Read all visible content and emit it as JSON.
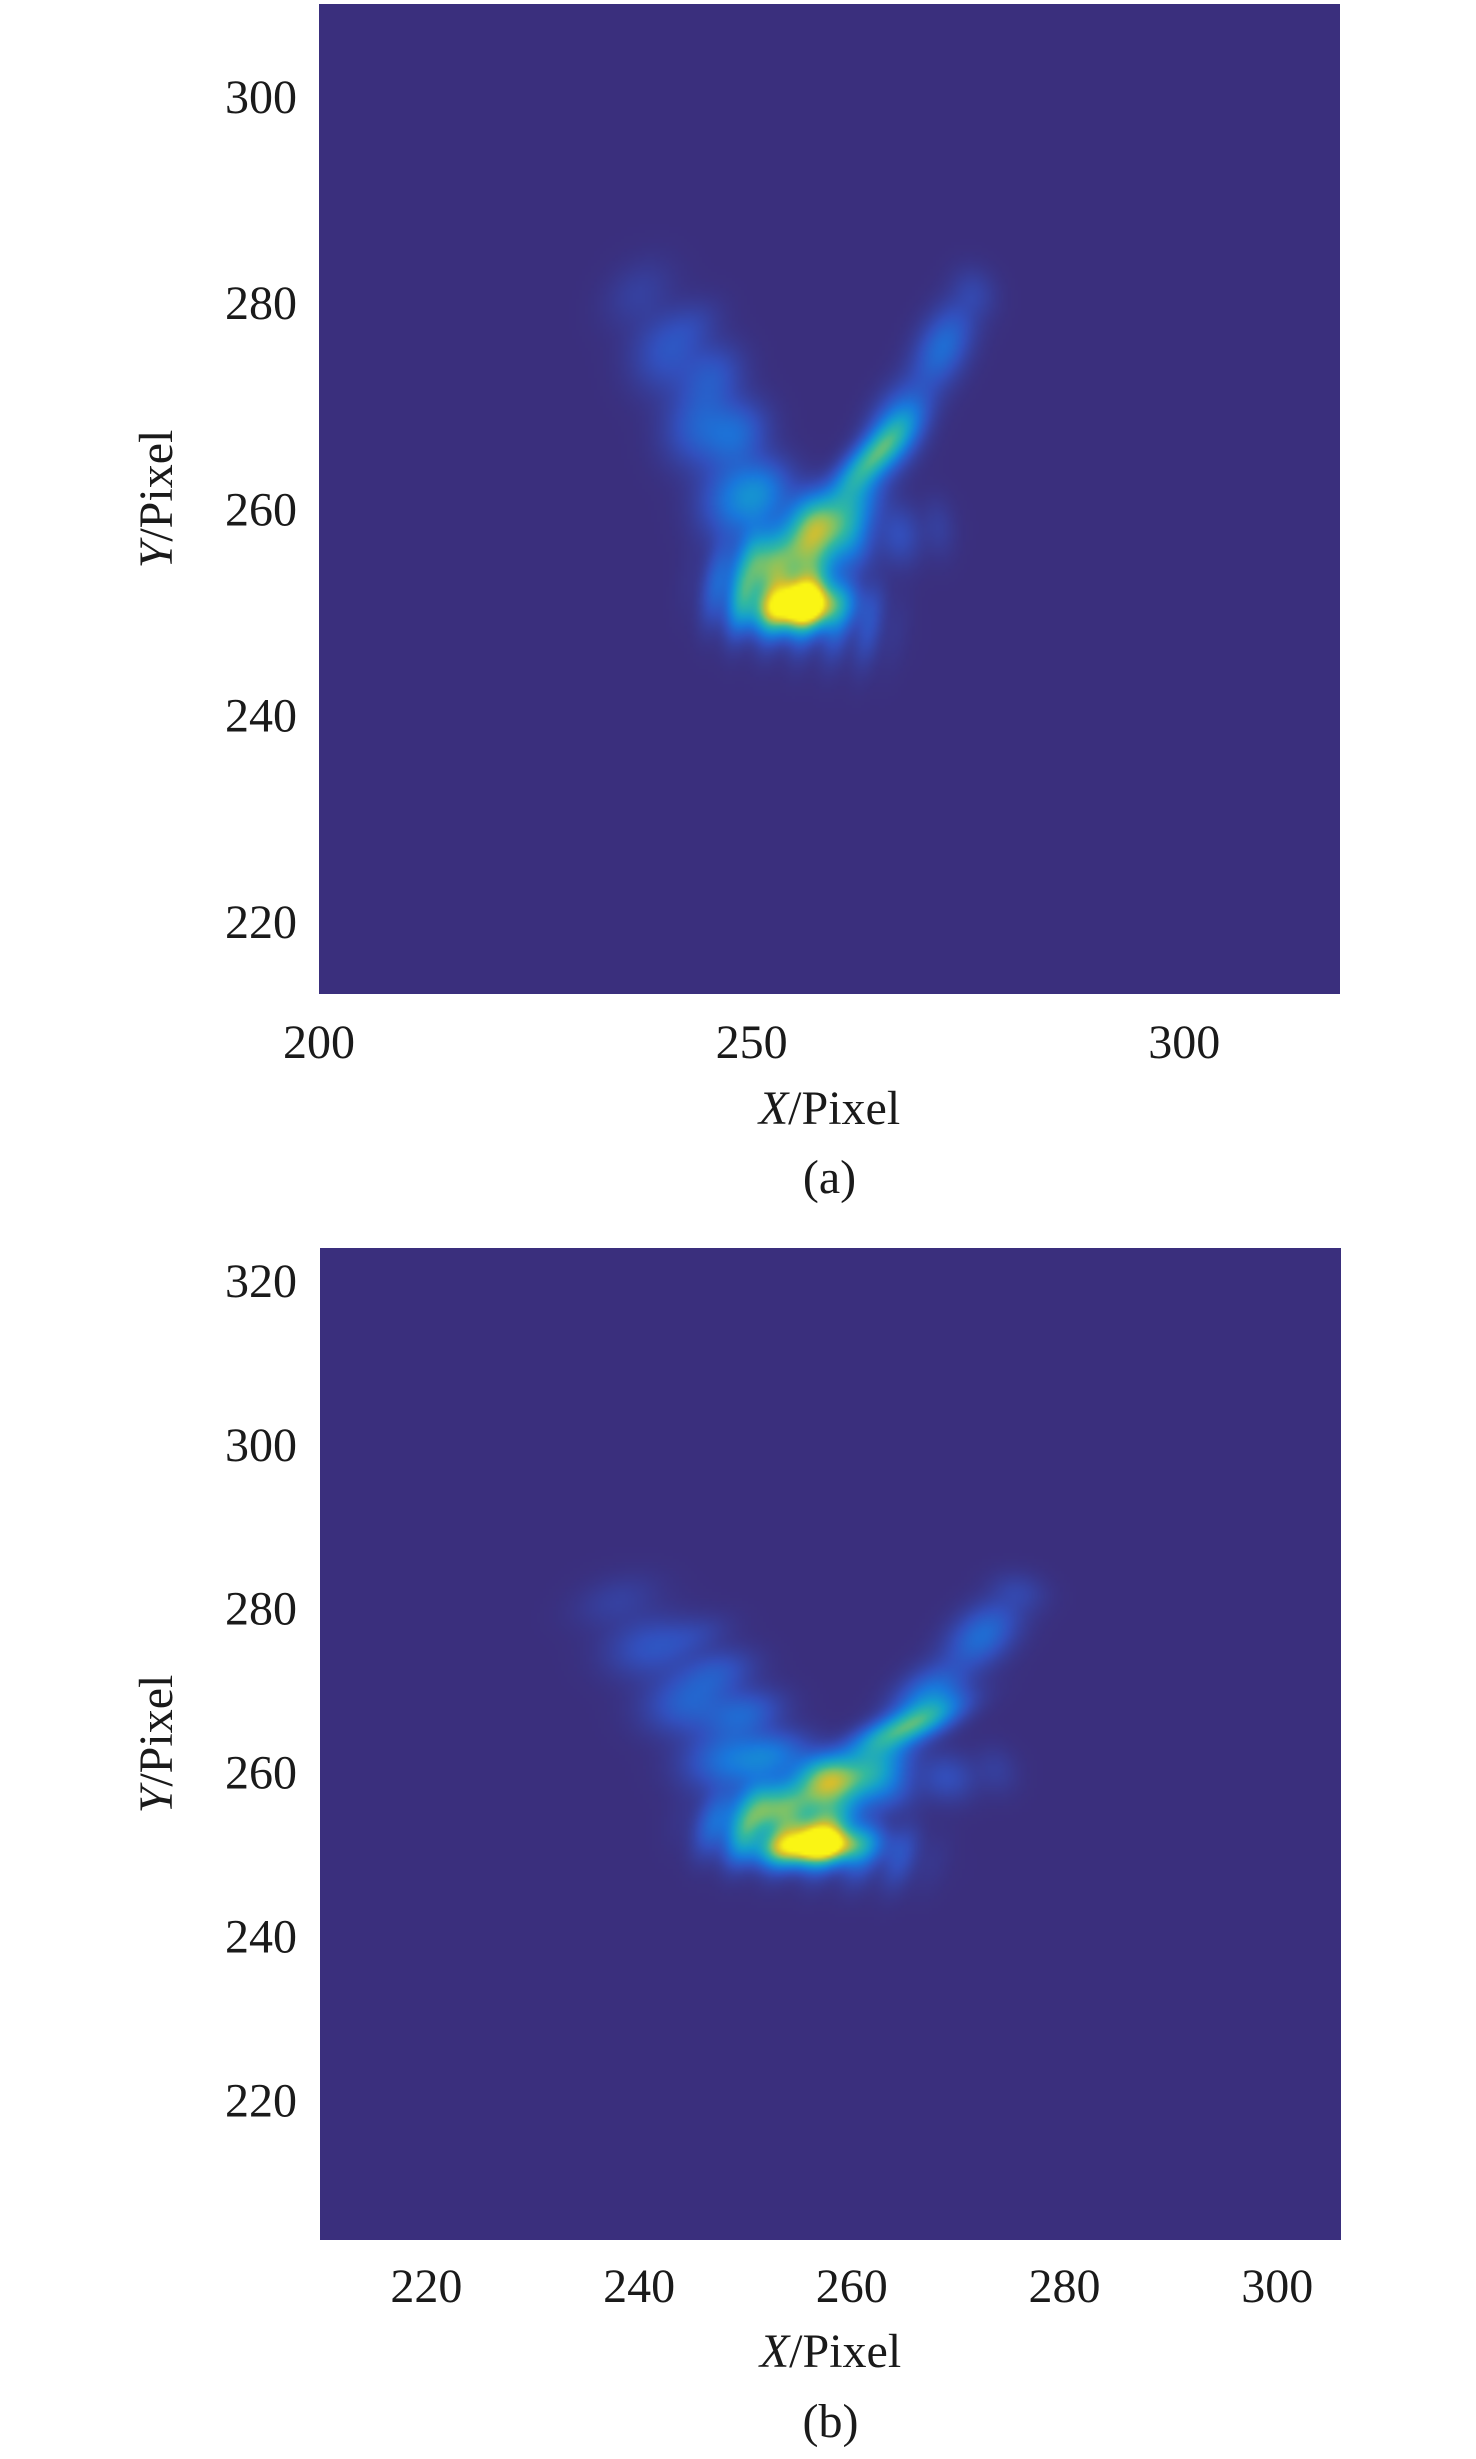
{
  "chart_data": [
    {
      "type": "heatmap",
      "caption": "(a)",
      "xlabel_var": "X",
      "xlabel_unit": "/Pixel",
      "ylabel_var": "Y",
      "ylabel_unit": "/Pixel",
      "xlim": [
        200,
        318
      ],
      "ylim": [
        213,
        309
      ],
      "xticks": [
        200,
        250,
        300
      ],
      "yticks": [
        220,
        240,
        260,
        280,
        300
      ],
      "background_color": "#3a2f7d",
      "features": [
        {
          "kind": "peak",
          "x": 255.5,
          "y": 250.5,
          "sx": 3.2,
          "sy": 1.4,
          "angle": 5,
          "intensity": 1.0
        },
        {
          "kind": "peak",
          "x": 257.5,
          "y": 258.5,
          "sx": 2.0,
          "sy": 2.0,
          "angle": 0,
          "intensity": 0.55
        },
        {
          "kind": "peak",
          "x": 264,
          "y": 265,
          "sx": 3.5,
          "sy": 1.2,
          "angle": 40,
          "intensity": 0.45
        },
        {
          "kind": "streak",
          "x1": 256,
          "y1": 252,
          "x2": 275,
          "y2": 280,
          "width": 1.8,
          "intensity": 0.45
        },
        {
          "kind": "streak",
          "x1": 252,
          "y1": 254,
          "x2": 238,
          "y2": 279,
          "width": 2.8,
          "intensity": 0.25
        },
        {
          "kind": "streak",
          "x1": 254,
          "y1": 256,
          "x2": 244,
          "y2": 276,
          "width": 2.4,
          "intensity": 0.25
        },
        {
          "kind": "streak",
          "x1": 251,
          "y1": 255,
          "x2": 270,
          "y2": 258,
          "width": 2.0,
          "intensity": 0.22
        },
        {
          "kind": "streak",
          "x1": 249,
          "y1": 252,
          "x2": 262,
          "y2": 249,
          "width": 2.6,
          "intensity": 0.4
        }
      ]
    },
    {
      "type": "heatmap",
      "caption": "(b)",
      "xlabel_var": "X",
      "xlabel_unit": "/Pixel",
      "ylabel_var": "Y",
      "ylabel_unit": "/Pixel",
      "xlim": [
        210,
        306
      ],
      "ylim": [
        203,
        324
      ],
      "xticks": [
        220,
        240,
        260,
        280,
        300
      ],
      "yticks": [
        220,
        240,
        260,
        280,
        300,
        320
      ],
      "background_color": "#3a2f7d",
      "features": [
        {
          "kind": "peak",
          "x": 256.5,
          "y": 251,
          "sx": 3.0,
          "sy": 1.4,
          "angle": 5,
          "intensity": 1.0
        },
        {
          "kind": "peak",
          "x": 258,
          "y": 259.5,
          "sx": 2.0,
          "sy": 1.8,
          "angle": 0,
          "intensity": 0.55
        },
        {
          "kind": "peak",
          "x": 265,
          "y": 265.5,
          "sx": 3.5,
          "sy": 1.2,
          "angle": 30,
          "intensity": 0.45
        },
        {
          "kind": "streak",
          "x1": 257,
          "y1": 253,
          "x2": 275,
          "y2": 281,
          "width": 1.8,
          "intensity": 0.45
        },
        {
          "kind": "streak",
          "x1": 252,
          "y1": 255,
          "x2": 239,
          "y2": 279,
          "width": 2.8,
          "intensity": 0.25
        },
        {
          "kind": "streak",
          "x1": 255,
          "y1": 257,
          "x2": 246,
          "y2": 275,
          "width": 2.4,
          "intensity": 0.25
        },
        {
          "kind": "streak",
          "x1": 252,
          "y1": 256,
          "x2": 272,
          "y2": 260,
          "width": 2.0,
          "intensity": 0.22
        },
        {
          "kind": "streak",
          "x1": 250,
          "y1": 253,
          "x2": 263,
          "y2": 250,
          "width": 2.6,
          "intensity": 0.4
        }
      ]
    }
  ]
}
